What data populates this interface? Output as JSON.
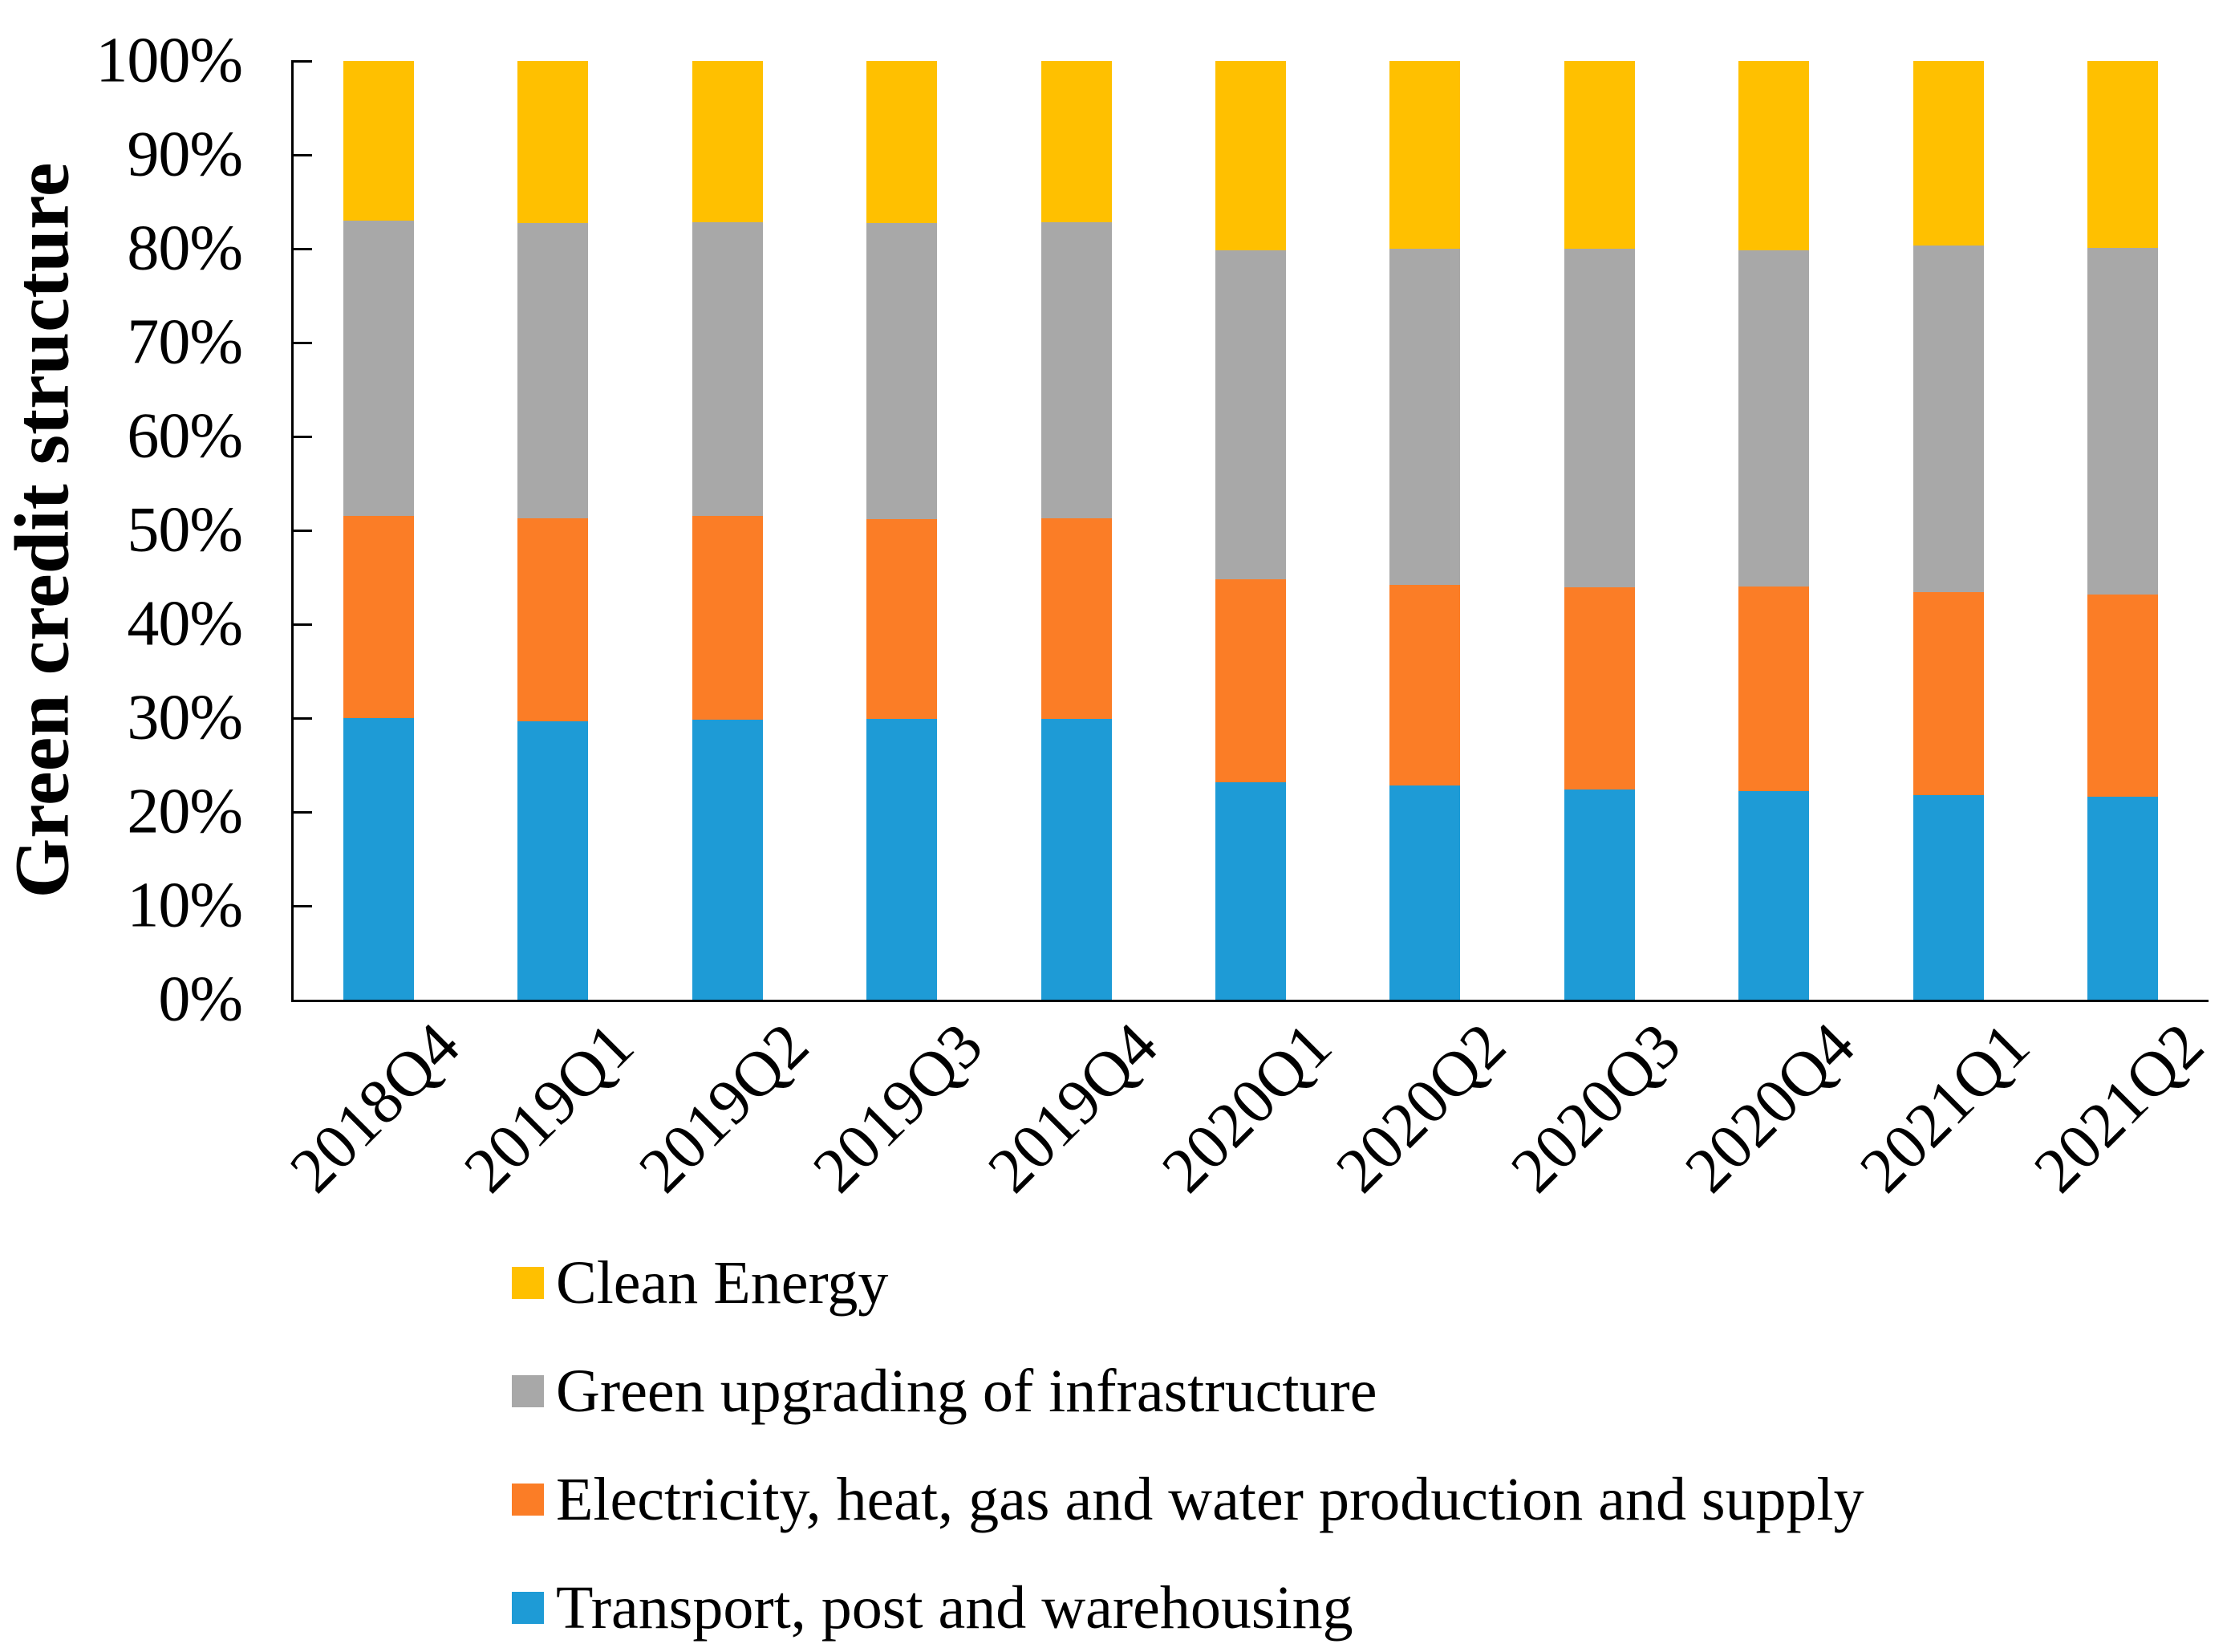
{
  "figure": {
    "ylabel": "Green credit structure",
    "background": "#ffffff",
    "axis_color": "#000000"
  },
  "chart_data": {
    "type": "bar",
    "stacked": true,
    "normalized_percent": true,
    "title": "",
    "xlabel": "",
    "ylabel": "Green credit structure",
    "ylim": [
      0,
      100
    ],
    "grid": false,
    "y_tick_labels": [
      "100%",
      "90%",
      "80%",
      "70%",
      "60%",
      "50%",
      "40%",
      "30%",
      "20%",
      "10%",
      "0%"
    ],
    "categories": [
      "2018Q4",
      "2019Q1",
      "2019Q2",
      "2019Q3",
      "2019Q4",
      "2020Q1",
      "2020Q2",
      "2020Q3",
      "2020Q4",
      "2021Q1",
      "2021Q2"
    ],
    "series": [
      {
        "name": "Transport, post and warehousing",
        "color": "#1E9BD6",
        "values": [
          30.0,
          29.7,
          29.8,
          29.9,
          29.9,
          23.2,
          22.8,
          22.4,
          22.2,
          21.8,
          21.6
        ]
      },
      {
        "name": "Electricity, heat, gas and water production and supply",
        "color": "#FB7D26",
        "values": [
          21.5,
          21.6,
          21.7,
          21.3,
          21.4,
          21.6,
          21.4,
          21.5,
          21.8,
          21.6,
          21.6
        ]
      },
      {
        "name": "Green upgrading of infrastructure",
        "color": "#A8A8A8",
        "values": [
          31.5,
          31.4,
          31.3,
          31.5,
          31.5,
          35.0,
          35.8,
          36.1,
          35.8,
          36.9,
          36.9
        ]
      },
      {
        "name": "Clean Energy",
        "color": "#FFC000",
        "values": [
          17.0,
          17.3,
          17.2,
          17.3,
          17.2,
          20.2,
          20.0,
          20.0,
          20.2,
          19.7,
          19.9
        ]
      }
    ],
    "legend": {
      "position": "below-chart-left",
      "entries_top_to_bottom": [
        "Clean Energy",
        "Green upgrading of infrastructure",
        "Electricity, heat, gas and water production and supply",
        "Transport, post and warehousing"
      ]
    }
  }
}
